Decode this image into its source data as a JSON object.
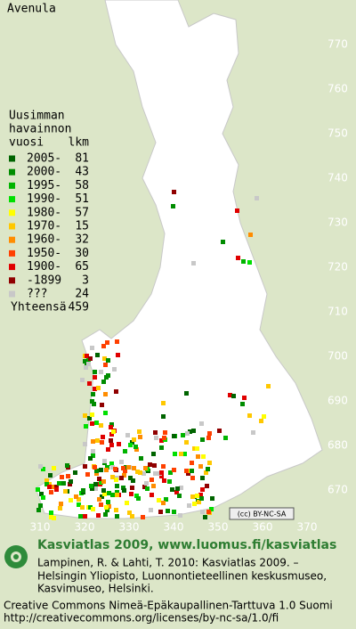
{
  "title": "Avenula",
  "legend": {
    "heading": [
      "Uusimman",
      "havainnon",
      "vuosi"
    ],
    "count_heading": "lkm",
    "items": [
      {
        "label": "2005-",
        "count": 81,
        "color": "#006400"
      },
      {
        "label": "2000-",
        "count": 43,
        "color": "#008c00"
      },
      {
        "label": "1995-",
        "count": 58,
        "color": "#00b400"
      },
      {
        "label": "1990-",
        "count": 51,
        "color": "#00e000"
      },
      {
        "label": "1980-",
        "count": 57,
        "color": "#ffff00"
      },
      {
        "label": "1970-",
        "count": 15,
        "color": "#ffc800"
      },
      {
        "label": "1960-",
        "count": 32,
        "color": "#ff8c00"
      },
      {
        "label": "1950-",
        "count": 30,
        "color": "#ff4000"
      },
      {
        "label": "1900-",
        "count": 65,
        "color": "#e00000"
      },
      {
        "label": "-1899",
        "count": 3,
        "color": "#900000"
      },
      {
        "label": "???",
        "count": 24,
        "color": "#c8c8c8"
      }
    ],
    "total": {
      "label": "Yhteensä",
      "count": 459
    }
  },
  "map": {
    "y_labels": [
      770,
      760,
      750,
      740,
      730,
      720,
      710,
      700,
      690,
      680,
      670
    ],
    "x_labels": [
      310,
      320,
      330,
      340,
      350,
      360,
      370
    ]
  },
  "license_badge": "(cc) BY-NC-SA",
  "footer": {
    "brand": "Kasviatlas 2009, www.luomus.fi/kasviatlas",
    "citation": [
      "Lampinen, R. & Lahti, T. 2010: Kasviatlas 2009. –",
      "Helsingin Yliopisto, Luonnontieteellinen keskusmuseo,",
      "Kasvimuseo, Helsinki."
    ],
    "license": [
      "Creative Commons Nimeä-Epäkaupallinen-Tarttuva 1.0 Suomi",
      "http://creativecommons.org/licenses/by-nc-sa/1.0/fi"
    ]
  }
}
